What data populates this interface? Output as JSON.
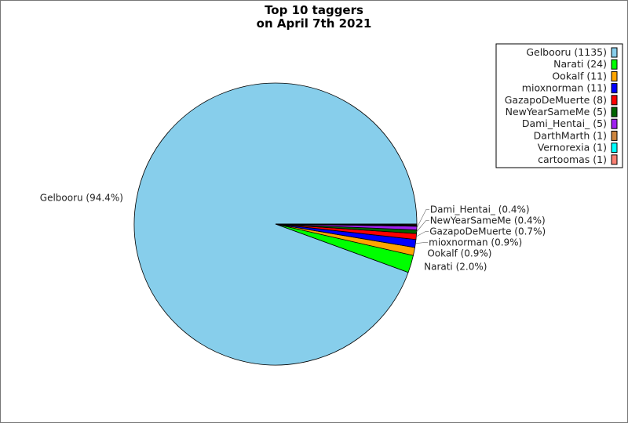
{
  "chart_data": {
    "type": "pie",
    "title_lines": [
      "Top 10 taggers",
      "on April 7th 2021"
    ],
    "legend_position": "top-right",
    "slices": [
      {
        "name": "Gelbooru",
        "value": 1135,
        "legend": "Gelbooru (1135)",
        "label": "Gelbooru (94.4%)",
        "color": "#87ceeb"
      },
      {
        "name": "Narati",
        "value": 24,
        "legend": "Narati (24)",
        "label": "Narati (2.0%)",
        "color": "#00ff00"
      },
      {
        "name": "Ookalf",
        "value": 11,
        "legend": "Ookalf (11)",
        "label": "Ookalf (0.9%)",
        "color": "#ffa500"
      },
      {
        "name": "mioxnorman",
        "value": 11,
        "legend": "mioxnorman (11)",
        "label": "mioxnorman (0.9%)",
        "color": "#0000ff"
      },
      {
        "name": "GazapoDeMuerte",
        "value": 8,
        "legend": "GazapoDeMuerte (8)",
        "label": "GazapoDeMuerte (0.7%)",
        "color": "#ff0000"
      },
      {
        "name": "NewYearSameMe",
        "value": 5,
        "legend": "NewYearSameMe (5)",
        "label": "NewYearSameMe (0.4%)",
        "color": "#006400"
      },
      {
        "name": "Dami_Hentai_",
        "value": 5,
        "legend": "Dami_Hentai_ (5)",
        "label": "Dami_Hentai_ (0.4%)",
        "color": "#a020f0"
      },
      {
        "name": "DarthMarth",
        "value": 1,
        "legend": "DarthMarth (1)",
        "label": "",
        "color": "#cd853f"
      },
      {
        "name": "Vernorexia",
        "value": 1,
        "legend": "Vernorexia (1)",
        "label": "",
        "color": "#00ffff"
      },
      {
        "name": "cartoomas",
        "value": 1,
        "legend": "cartoomas (1)",
        "label": "",
        "color": "#fa8072"
      }
    ]
  }
}
